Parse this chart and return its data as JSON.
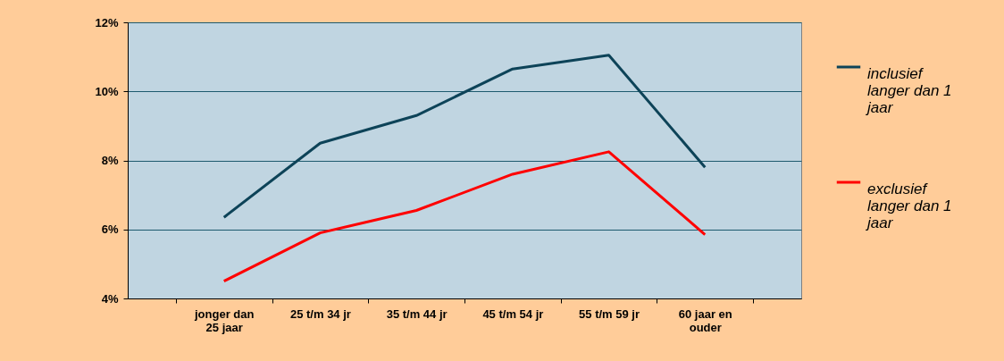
{
  "chart_data": {
    "type": "line",
    "categories": [
      "jonger dan 25 jaar",
      "25 t/m 34 jr",
      "35 t/m 44 jr",
      "45 t/m 54 jr",
      "55 t/m 59 jr",
      "60 jaar en ouder"
    ],
    "series": [
      {
        "name": "inclusief langer dan 1 jaar",
        "color": "#0d4358",
        "values": [
          6.35,
          8.5,
          9.3,
          10.65,
          11.05,
          7.8
        ]
      },
      {
        "name": "exclusief langer dan 1 jaar",
        "color": "#ff0000",
        "values": [
          4.5,
          5.9,
          6.55,
          7.6,
          8.25,
          5.85
        ]
      }
    ],
    "ylim": [
      4,
      12
    ],
    "yticks": [
      {
        "value": 4,
        "label": "4%"
      },
      {
        "value": 6,
        "label": "6%"
      },
      {
        "value": 8,
        "label": "8%"
      },
      {
        "value": 10,
        "label": "10%"
      },
      {
        "value": 12,
        "label": "12%"
      }
    ],
    "grid": "y",
    "legend": "right",
    "marker": "none",
    "line_style": "solid"
  }
}
